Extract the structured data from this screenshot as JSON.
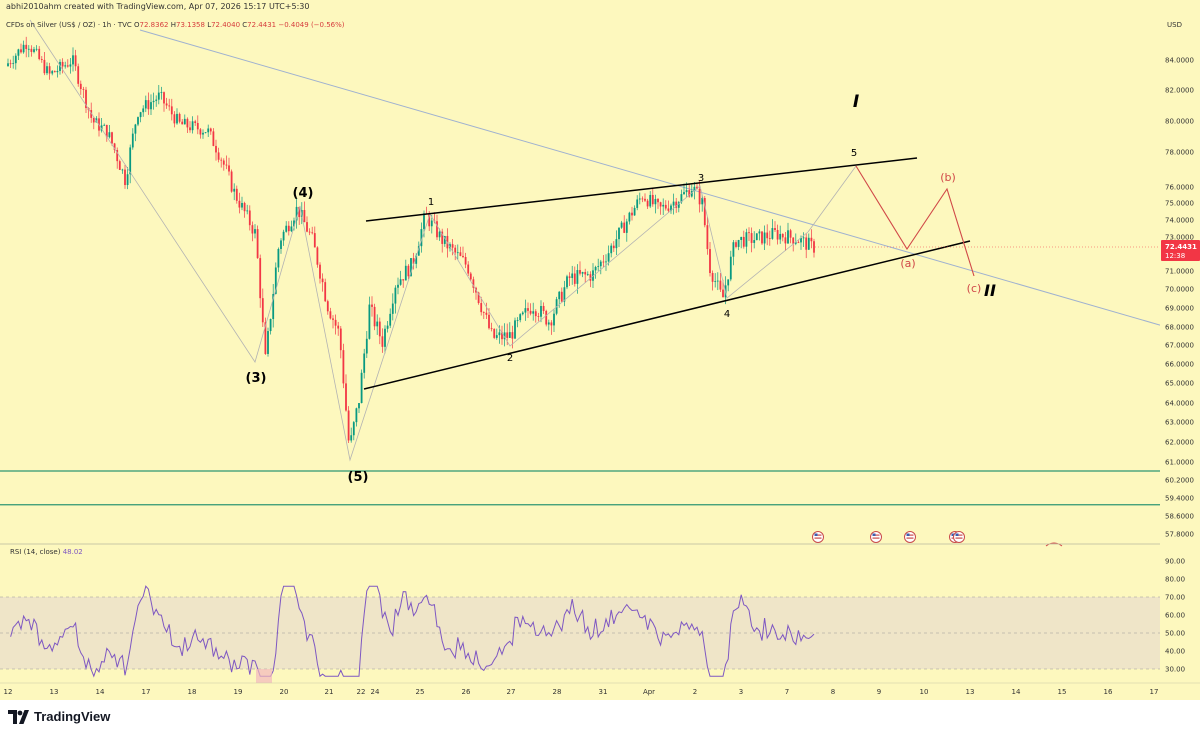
{
  "header": {
    "created_line": "abhi2010ahm created with TradingView.com, Apr 07, 2026 15:17 UTC+5:30"
  },
  "legend": {
    "symbol": "CFDs on Silver (US$ / OZ) · 1h · TVC",
    "open_label": "O",
    "open": "72.8362",
    "high_label": "H",
    "high": "73.1358",
    "low_label": "L",
    "low": "72.4040",
    "close_label": "C",
    "close": "72.4431",
    "change": "−0.4049 (−0.56%)"
  },
  "colors": {
    "background": "#fdf8be",
    "up": "#089981",
    "down": "#f23645",
    "rsi_line": "#7e57c2",
    "projection": "#d04848",
    "wave_path": "#b3b3b3",
    "channel": "#000000",
    "support": "#2e9673",
    "descending_line": "#9fb1d0"
  },
  "chart_data": [
    {
      "type": "candlestick",
      "price_axis": {
        "currency": "USD",
        "ticks": [
          "84.0000",
          "82.0000",
          "80.0000",
          "78.0000",
          "76.0000",
          "75.0000",
          "74.0000",
          "73.0000",
          "72.0000",
          "71.0000",
          "70.0000",
          "69.0000",
          "68.0000",
          "67.0000",
          "66.0000",
          "65.0000",
          "64.0000",
          "63.0000",
          "62.0000",
          "61.0000",
          "60.2000",
          "59.4000",
          "58.6000",
          "57.8000"
        ],
        "last_price": "72.4431",
        "countdown": "12:38"
      },
      "time_axis": {
        "ticks": [
          "12",
          "13",
          "14",
          "17",
          "18",
          "19",
          "20",
          "21",
          "22",
          "24",
          "25",
          "26",
          "27",
          "28",
          "31",
          "Apr",
          "2",
          "3",
          "7",
          "8",
          "9",
          "10",
          "13",
          "14",
          "15",
          "16",
          "17"
        ]
      },
      "wave_labels": {
        "w3": "(3)",
        "w4": "(4)",
        "w5": "(5)",
        "s1": "1",
        "s2": "2",
        "s3": "3",
        "s4": "4",
        "s5": "5",
        "roman1": "I",
        "roman2": "II",
        "a": "(a)",
        "b": "(b)",
        "c": "(c)"
      },
      "wave_points": [
        {
          "label": "(3)",
          "date": "Mar 19",
          "price": 66.0
        },
        {
          "label": "(4)",
          "date": "Mar 20",
          "price": 75.2
        },
        {
          "label": "(5)",
          "date": "Mar 23",
          "price": 61.0
        },
        {
          "label": "1",
          "date": "Mar 25",
          "price": 74.3
        },
        {
          "label": "2",
          "date": "Mar 26",
          "price": 67.0
        },
        {
          "label": "3",
          "date": "Apr 2",
          "price": 76.0
        },
        {
          "label": "4",
          "date": "Apr 2",
          "price": 69.6
        },
        {
          "label": "5",
          "date": "Apr 8",
          "price": 77.0
        },
        {
          "label": "(a)",
          "date": "Apr 9",
          "price": 72.2
        },
        {
          "label": "(b)",
          "date": "Apr 10",
          "price": 75.9
        },
        {
          "label": "(c)",
          "date": "Apr 11",
          "price": 71.0
        }
      ],
      "support_levels": [
        60.6,
        59.1
      ]
    },
    {
      "type": "line",
      "title": "RSI (14, close)",
      "value": "48.02",
      "ticks": [
        "90.00",
        "80.00",
        "70.00",
        "60.00",
        "50.00",
        "40.00",
        "30.00"
      ],
      "band": [
        30,
        70
      ]
    }
  ],
  "footer": {
    "logo_text": "TradingView"
  }
}
